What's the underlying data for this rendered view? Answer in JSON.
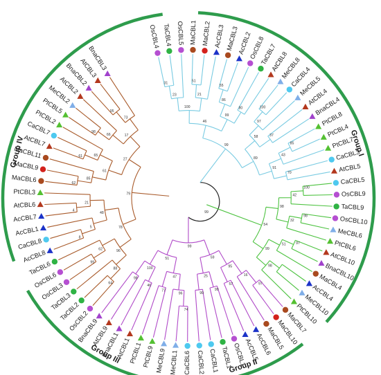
{
  "colors": {
    "ring": "#2e9c4c",
    "root_branch": "#222222",
    "clade": {
      "I": "#79cbe2",
      "II": "#4cc23f",
      "III": "#b04ac8",
      "IV": "#a85a2a"
    }
  },
  "groups": [
    {
      "id": "I",
      "label": "Group I"
    },
    {
      "id": "II",
      "label": "Group II"
    },
    {
      "id": "III",
      "label": "Group III"
    },
    {
      "id": "IV",
      "label": "Group IV"
    }
  ],
  "root_support": "99",
  "leaves": [
    {
      "name": "OsCBL4",
      "marker": "circle",
      "marker_color": "#b54fd1",
      "group": "I"
    },
    {
      "name": "TaCBL4",
      "marker": "circle",
      "marker_color": "#2fb344",
      "group": "I"
    },
    {
      "name": "OsCBL5",
      "marker": "circle",
      "marker_color": "#b54fd1",
      "group": "I"
    },
    {
      "name": "MaCBL1",
      "marker": "circle",
      "marker_color": "#a94a1f",
      "group": "I"
    },
    {
      "name": "MaCBL2",
      "marker": "circle",
      "marker_color": "#d3211c",
      "group": "I"
    },
    {
      "name": "AcCBL3",
      "marker": "triangle",
      "marker_color": "#1c33c8",
      "group": "I"
    },
    {
      "name": "MaCBL3",
      "marker": "circle",
      "marker_color": "#a94a1f",
      "group": "I"
    },
    {
      "name": "AcCBL2",
      "marker": "triangle",
      "marker_color": "#1c33c8",
      "group": "I"
    },
    {
      "name": "OsCBL8",
      "marker": "circle",
      "marker_color": "#b54fd1",
      "group": "I"
    },
    {
      "name": "TaCBL7",
      "marker": "circle",
      "marker_color": "#2fb344",
      "group": "I"
    },
    {
      "name": "AtCBL8",
      "marker": "triangle",
      "marker_color": "#b3381e",
      "group": "I"
    },
    {
      "name": "MeCBL8",
      "marker": "triangle",
      "marker_color": "#7faee8",
      "group": "I"
    },
    {
      "name": "CaCBL4",
      "marker": "circle",
      "marker_color": "#4ec9ef",
      "group": "I"
    },
    {
      "name": "MeCBL5",
      "marker": "triangle",
      "marker_color": "#7faee8",
      "group": "I"
    },
    {
      "name": "AtCBL4",
      "marker": "triangle",
      "marker_color": "#b3381e",
      "group": "I"
    },
    {
      "name": "BnaCBL4",
      "marker": "triangle",
      "marker_color": "#a142cc",
      "group": "I"
    },
    {
      "name": "PtCBL8",
      "marker": "triangle",
      "marker_color": "#54c032",
      "group": "I"
    },
    {
      "name": "PtCBL4",
      "marker": "triangle",
      "marker_color": "#54c032",
      "group": "I"
    },
    {
      "name": "PtCBL7",
      "marker": "triangle",
      "marker_color": "#54c032",
      "group": "I"
    },
    {
      "name": "CaCBL3",
      "marker": "circle",
      "marker_color": "#4ec9ef",
      "group": "I"
    },
    {
      "name": "AtCBL5",
      "marker": "triangle",
      "marker_color": "#b3381e",
      "group": "I"
    },
    {
      "name": "CaCBL5",
      "marker": "circle",
      "marker_color": "#4ec9ef",
      "group": "II"
    },
    {
      "name": "OsCBL9",
      "marker": "circle",
      "marker_color": "#b54fd1",
      "group": "II"
    },
    {
      "name": "TaCBL9",
      "marker": "circle",
      "marker_color": "#2fb344",
      "group": "II"
    },
    {
      "name": "OsCBL10",
      "marker": "circle",
      "marker_color": "#b54fd1",
      "group": "II"
    },
    {
      "name": "MeCBL6",
      "marker": "triangle",
      "marker_color": "#7faee8",
      "group": "II"
    },
    {
      "name": "PtCBL6",
      "marker": "triangle",
      "marker_color": "#54c032",
      "group": "II"
    },
    {
      "name": "AtCBL10",
      "marker": "triangle",
      "marker_color": "#b3381e",
      "group": "II"
    },
    {
      "name": "BnaCBL10",
      "marker": "triangle",
      "marker_color": "#a142cc",
      "group": "II"
    },
    {
      "name": "MaCBL4",
      "marker": "circle",
      "marker_color": "#a94a1f",
      "group": "II"
    },
    {
      "name": "AcCBL4",
      "marker": "triangle",
      "marker_color": "#1c33c8",
      "group": "II"
    },
    {
      "name": "MeCBL10",
      "marker": "triangle",
      "marker_color": "#7faee8",
      "group": "II"
    },
    {
      "name": "PtCBL10",
      "marker": "triangle",
      "marker_color": "#54c032",
      "group": "II"
    },
    {
      "name": "MaCBL7",
      "marker": "circle",
      "marker_color": "#a94a1f",
      "group": "III"
    },
    {
      "name": "MaCBL10",
      "marker": "circle",
      "marker_color": "#d3211c",
      "group": "III"
    },
    {
      "name": "MaCBL5",
      "marker": "circle",
      "marker_color": "#a94a1f",
      "group": "III"
    },
    {
      "name": "AcCBL6",
      "marker": "triangle",
      "marker_color": "#1c33c8",
      "group": "III"
    },
    {
      "name": "AcCBL5",
      "marker": "triangle",
      "marker_color": "#1c33c8",
      "group": "III"
    },
    {
      "name": "OsCBL1",
      "marker": "circle",
      "marker_color": "#b54fd1",
      "group": "III"
    },
    {
      "name": "TaCBL1",
      "marker": "circle",
      "marker_color": "#2fb344",
      "group": "III"
    },
    {
      "name": "CaCBL1",
      "marker": "circle",
      "marker_color": "#4ec9ef",
      "group": "III"
    },
    {
      "name": "CaCBL2",
      "marker": "circle",
      "marker_color": "#4ec9ef",
      "group": "III"
    },
    {
      "name": "CaCBL6",
      "marker": "circle",
      "marker_color": "#4ec9ef",
      "group": "III"
    },
    {
      "name": "MeCBL1",
      "marker": "triangle",
      "marker_color": "#7faee8",
      "group": "III"
    },
    {
      "name": "MeCBL9",
      "marker": "triangle",
      "marker_color": "#7faee8",
      "group": "III"
    },
    {
      "name": "PtCBL9",
      "marker": "triangle",
      "marker_color": "#54c032",
      "group": "III"
    },
    {
      "name": "PtCBL1",
      "marker": "triangle",
      "marker_color": "#54c032",
      "group": "III"
    },
    {
      "name": "AtCBL1",
      "marker": "triangle",
      "marker_color": "#b3381e",
      "group": "III"
    },
    {
      "name": "BnaCBL1",
      "marker": "triangle",
      "marker_color": "#a142cc",
      "group": "III"
    },
    {
      "name": "AtCBL9",
      "marker": "triangle",
      "marker_color": "#b3381e",
      "group": "III"
    },
    {
      "name": "BnaCBL9",
      "marker": "triangle",
      "marker_color": "#a142cc",
      "group": "III"
    },
    {
      "name": "OsCBL2",
      "marker": "circle",
      "marker_color": "#b54fd1",
      "group": "IV"
    },
    {
      "name": "TaCBL2",
      "marker": "circle",
      "marker_color": "#2fb344",
      "group": "IV"
    },
    {
      "name": "TaCBL3",
      "marker": "circle",
      "marker_color": "#2fb344",
      "group": "IV"
    },
    {
      "name": "OsCBL3",
      "marker": "circle",
      "marker_color": "#b54fd1",
      "group": "IV"
    },
    {
      "name": "OsCBL6",
      "marker": "circle",
      "marker_color": "#b54fd1",
      "group": "IV"
    },
    {
      "name": "TaCBL6",
      "marker": "circle",
      "marker_color": "#2fb344",
      "group": "IV"
    },
    {
      "name": "AcCBL8",
      "marker": "triangle",
      "marker_color": "#1c33c8",
      "group": "IV"
    },
    {
      "name": "CaCBL8",
      "marker": "circle",
      "marker_color": "#4ec9ef",
      "group": "IV"
    },
    {
      "name": "AcCBL1",
      "marker": "triangle",
      "marker_color": "#1c33c8",
      "group": "IV"
    },
    {
      "name": "AcCBL7",
      "marker": "triangle",
      "marker_color": "#1c33c8",
      "group": "IV"
    },
    {
      "name": "AtCBL6",
      "marker": "triangle",
      "marker_color": "#b3381e",
      "group": "IV"
    },
    {
      "name": "PtCBL3",
      "marker": "triangle",
      "marker_color": "#54c032",
      "group": "IV"
    },
    {
      "name": "MaCBL6",
      "marker": "circle",
      "marker_color": "#a94a1f",
      "group": "IV"
    },
    {
      "name": "MaCBL9",
      "marker": "circle",
      "marker_color": "#d3211c",
      "group": "IV"
    },
    {
      "name": "MaCBL11",
      "marker": "circle",
      "marker_color": "#a94a1f",
      "group": "IV"
    },
    {
      "name": "AtCBL7",
      "marker": "triangle",
      "marker_color": "#b3381e",
      "group": "IV"
    },
    {
      "name": "CaCBL7",
      "marker": "circle",
      "marker_color": "#4ec9ef",
      "group": "IV"
    },
    {
      "name": "PtCBL2",
      "marker": "triangle",
      "marker_color": "#54c032",
      "group": "IV"
    },
    {
      "name": "PtCBL5",
      "marker": "triangle",
      "marker_color": "#54c032",
      "group": "IV"
    },
    {
      "name": "MeCBL2",
      "marker": "triangle",
      "marker_color": "#7faee8",
      "group": "IV"
    },
    {
      "name": "AtCBL2",
      "marker": "triangle",
      "marker_color": "#b3381e",
      "group": "IV"
    },
    {
      "name": "BnaCBL2",
      "marker": "triangle",
      "marker_color": "#a142cc",
      "group": "IV"
    },
    {
      "name": "AtCBL3",
      "marker": "triangle",
      "marker_color": "#b3381e",
      "group": "IV"
    },
    {
      "name": "BnaCBL3",
      "marker": "triangle",
      "marker_color": "#a142cc",
      "group": "IV"
    }
  ],
  "bootstrap_values": {
    "I": [
      "99",
      "46",
      "100",
      "23",
      "31",
      "21",
      "51",
      "99",
      "86",
      "55",
      "80",
      "89",
      "58",
      "97",
      "100",
      "37",
      "91",
      "43",
      "85",
      "70",
      "93",
      "95",
      "66"
    ],
    "II": [
      "54",
      "98",
      "42",
      "100",
      "32",
      "98",
      "99",
      "51",
      "97",
      "98"
    ],
    "III": [
      "99",
      "59",
      "95",
      "16",
      "97",
      "57",
      "25",
      "99",
      "99",
      "51",
      "47",
      "96",
      "74",
      "77",
      "100",
      "46",
      "98"
    ],
    "IV": [
      "79",
      "78",
      "96",
      "88",
      "64",
      "62",
      "99",
      "48",
      "5",
      "8",
      "21",
      "4",
      "27",
      "61",
      "85",
      "62",
      "65",
      "61",
      "17",
      "66",
      "98",
      "73",
      "95",
      "93",
      "49",
      "99"
    ]
  }
}
